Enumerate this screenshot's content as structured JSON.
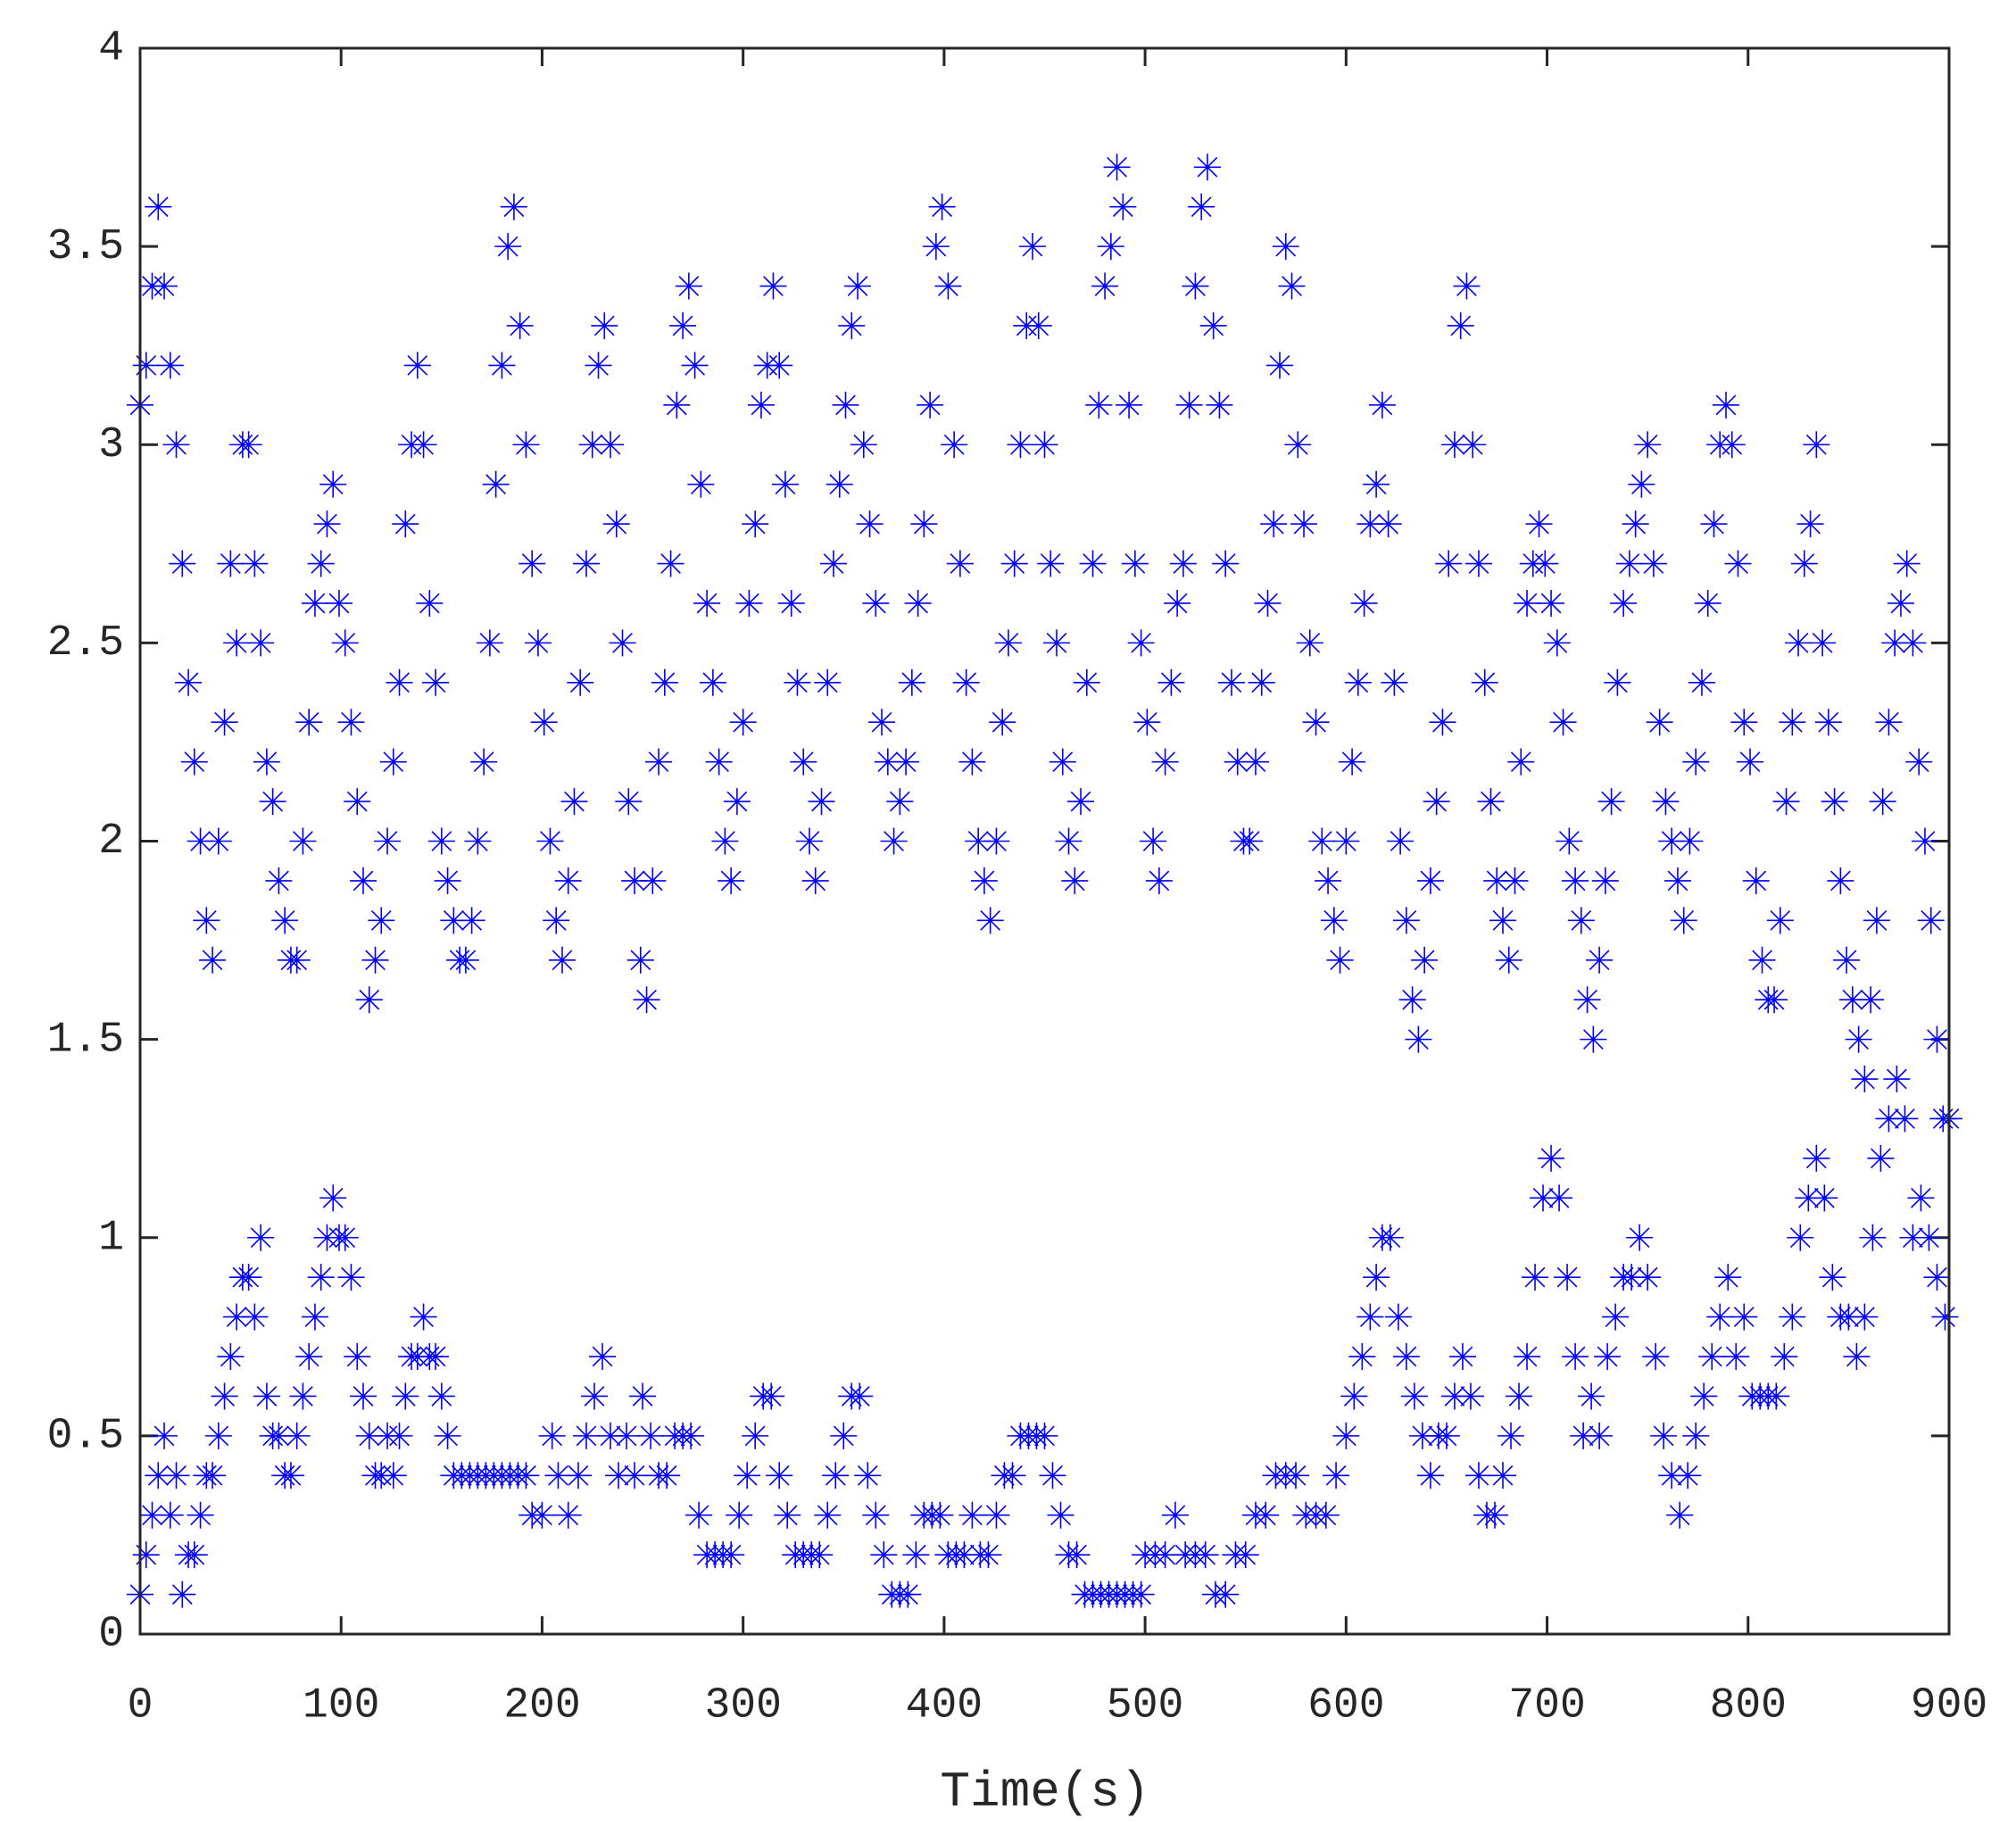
{
  "chart_data": {
    "type": "scatter",
    "x_label": "Time(s)",
    "color": "#0000ff",
    "marker": "asterisk",
    "xlim": [
      0,
      900
    ],
    "ylim": [
      0,
      4
    ],
    "xticks": [
      0,
      100,
      200,
      300,
      400,
      500,
      600,
      700,
      800,
      900
    ],
    "yticks": [
      0,
      0.5,
      1,
      1.5,
      2,
      2.5,
      3,
      3.5,
      4
    ],
    "x": [
      0,
      3,
      6,
      9,
      12,
      15,
      18,
      21,
      24,
      27,
      30,
      33,
      36,
      39,
      42,
      45,
      48,
      51,
      54,
      57,
      60,
      63,
      66,
      69,
      72,
      75,
      78,
      81,
      84,
      87,
      90,
      93,
      96,
      99,
      102,
      105,
      108,
      111,
      114,
      117,
      120,
      123,
      126,
      129,
      132,
      135,
      138,
      141,
      144,
      147,
      150,
      153,
      156,
      159,
      162,
      165,
      168,
      171,
      174,
      177,
      180,
      183,
      186,
      189,
      192,
      195,
      198,
      201,
      204,
      207,
      210,
      213,
      216,
      219,
      222,
      225,
      228,
      231,
      234,
      237,
      240,
      243,
      246,
      249,
      252,
      255,
      258,
      261,
      264,
      267,
      270,
      273,
      276,
      279,
      282,
      285,
      288,
      291,
      294,
      297,
      300,
      303,
      306,
      309,
      312,
      315,
      318,
      321,
      324,
      327,
      330,
      333,
      336,
      339,
      342,
      345,
      348,
      351,
      354,
      357,
      360,
      363,
      366,
      369,
      372,
      375,
      378,
      381,
      384,
      387,
      390,
      393,
      396,
      399,
      402,
      405,
      408,
      411,
      414,
      417,
      420,
      423,
      426,
      429,
      432,
      435,
      438,
      441,
      444,
      447,
      450,
      453,
      456,
      459,
      462,
      465,
      468,
      471,
      474,
      477,
      480,
      483,
      486,
      489,
      492,
      495,
      498,
      501,
      504,
      507,
      510,
      513,
      516,
      519,
      522,
      525,
      528,
      531,
      534,
      537,
      540,
      543,
      546,
      549,
      552,
      555,
      558,
      561,
      564,
      567,
      570,
      573,
      576,
      579,
      582,
      585,
      588,
      591,
      594,
      597,
      600,
      603,
      606,
      609,
      612,
      615,
      618,
      621,
      624,
      627,
      630,
      633,
      636,
      639,
      642,
      645,
      648,
      651,
      654,
      657,
      660,
      663,
      666,
      669,
      672,
      675,
      678,
      681,
      684,
      687,
      690,
      693,
      696,
      699,
      702,
      705,
      708,
      711,
      714,
      717,
      720,
      723,
      726,
      729,
      732,
      735,
      738,
      741,
      744,
      747,
      750,
      753,
      756,
      759,
      762,
      765,
      768,
      771,
      774,
      777,
      780,
      783,
      786,
      789,
      792,
      795,
      798,
      801,
      804,
      807,
      810,
      813,
      816,
      819,
      822,
      825,
      828,
      831,
      834,
      837,
      840,
      843,
      846,
      849,
      852,
      855,
      858,
      861,
      864,
      867,
      870,
      873,
      876,
      879,
      882,
      885,
      888,
      891,
      894,
      897,
      900,
      0,
      3,
      6,
      9,
      12,
      15,
      18,
      21,
      24,
      27,
      30,
      33,
      36,
      39,
      42,
      45,
      48,
      51,
      54,
      57,
      60,
      63,
      66,
      69,
      72,
      75,
      78,
      81,
      84,
      87,
      90,
      93,
      96,
      99,
      102,
      105,
      108,
      111,
      114,
      117,
      120,
      123,
      126,
      129,
      132,
      135,
      138,
      141,
      144,
      147,
      150,
      153,
      156,
      160,
      164,
      168,
      172,
      176,
      180,
      184,
      188,
      192,
      195,
      200,
      205,
      208,
      213,
      218,
      222,
      226,
      230,
      234,
      238,
      242,
      246,
      250,
      254,
      258,
      262,
      266,
      270,
      274,
      278,
      282,
      286,
      290,
      294,
      298,
      302,
      306,
      310,
      314,
      318,
      322,
      326,
      330,
      334,
      338,
      342,
      346,
      350,
      354,
      358,
      362,
      366,
      370,
      374,
      378,
      382,
      386,
      390,
      394,
      398,
      402,
      406,
      410,
      414,
      418,
      422,
      426,
      430,
      434,
      438,
      442,
      446,
      450,
      454,
      458,
      462,
      466,
      470,
      474,
      478,
      482,
      486,
      490,
      494,
      498,
      500,
      505,
      510,
      515,
      520,
      525,
      530,
      535,
      540,
      545,
      550,
      555,
      560,
      565,
      570,
      575,
      580,
      585,
      590,
      595,
      600,
      604,
      608,
      612,
      615,
      618,
      622,
      626,
      630,
      634,
      638,
      642,
      646,
      650,
      654,
      658,
      662,
      666,
      670,
      674,
      678,
      682,
      686,
      690,
      694,
      698,
      702,
      706,
      710,
      714,
      718,
      722,
      726,
      730,
      734,
      738,
      742,
      746,
      750,
      754,
      758,
      762,
      766,
      770,
      774,
      778,
      782,
      786,
      790,
      794,
      798,
      802,
      806,
      810,
      814,
      818,
      822,
      826,
      830,
      834,
      838,
      842,
      846,
      850,
      854,
      858,
      862,
      866,
      870,
      874,
      878,
      882,
      886,
      890,
      894,
      898
    ],
    "values": [
      3.1,
      3.2,
      3.4,
      3.6,
      3.4,
      3.2,
      3.0,
      2.7,
      2.4,
      2.2,
      2.0,
      1.8,
      1.7,
      2.0,
      2.3,
      2.7,
      2.5,
      3.0,
      3.0,
      2.7,
      2.5,
      2.2,
      2.1,
      1.9,
      1.8,
      1.7,
      1.7,
      2.0,
      2.3,
      2.6,
      2.7,
      2.8,
      2.9,
      2.6,
      2.5,
      2.3,
      2.1,
      1.9,
      1.6,
      1.7,
      1.8,
      2.0,
      2.2,
      2.4,
      2.8,
      3.0,
      3.2,
      3.0,
      2.6,
      2.4,
      2.0,
      1.9,
      1.8,
      1.7,
      1.7,
      1.8,
      2.0,
      2.2,
      2.5,
      2.9,
      3.2,
      3.5,
      3.6,
      3.3,
      3.0,
      2.7,
      2.5,
      2.3,
      2.0,
      1.8,
      1.7,
      1.9,
      2.1,
      2.4,
      2.7,
      3.0,
      3.2,
      3.3,
      3.0,
      2.8,
      2.5,
      2.1,
      1.9,
      1.7,
      1.6,
      1.9,
      2.2,
      2.4,
      2.7,
      3.1,
      3.3,
      3.4,
      3.2,
      2.9,
      2.6,
      2.4,
      2.2,
      2.0,
      1.9,
      2.1,
      2.3,
      2.6,
      2.8,
      3.1,
      3.2,
      3.4,
      3.2,
      2.9,
      2.6,
      2.4,
      2.2,
      2.0,
      1.9,
      2.1,
      2.4,
      2.7,
      2.9,
      3.1,
      3.3,
      3.4,
      3.0,
      2.8,
      2.6,
      2.3,
      2.2,
      2.0,
      2.1,
      2.2,
      2.4,
      2.6,
      2.8,
      3.1,
      3.5,
      3.6,
      3.4,
      3.0,
      2.7,
      2.4,
      2.2,
      2.0,
      1.9,
      1.8,
      2.0,
      2.3,
      2.5,
      2.7,
      3.0,
      3.3,
      3.5,
      3.3,
      3.0,
      2.7,
      2.5,
      2.2,
      2.0,
      1.9,
      2.1,
      2.4,
      2.7,
      3.1,
      3.4,
      3.5,
      3.7,
      3.6,
      3.1,
      2.7,
      2.5,
      2.3,
      2.0,
      1.9,
      2.2,
      2.4,
      2.6,
      2.7,
      3.1,
      3.4,
      3.6,
      3.7,
      3.3,
      3.1,
      2.7,
      2.4,
      2.2,
      2.0,
      2.0,
      2.2,
      2.4,
      2.6,
      2.8,
      3.2,
      3.5,
      3.4,
      3.0,
      2.8,
      2.5,
      2.3,
      2.0,
      1.9,
      1.8,
      1.7,
      2.0,
      2.2,
      2.4,
      2.6,
      2.8,
      2.9,
      3.1,
      2.8,
      2.4,
      2.0,
      1.8,
      1.6,
      1.5,
      1.7,
      1.9,
      2.1,
      2.3,
      2.7,
      3.0,
      3.3,
      3.4,
      3.0,
      2.7,
      2.4,
      2.1,
      1.9,
      1.8,
      1.7,
      1.9,
      2.2,
      2.6,
      2.7,
      2.8,
      2.7,
      2.6,
      2.5,
      2.3,
      2.0,
      1.9,
      1.8,
      1.6,
      1.5,
      1.7,
      1.9,
      2.1,
      2.4,
      2.6,
      2.7,
      2.8,
      2.9,
      3.0,
      2.7,
      2.3,
      2.1,
      2.0,
      1.9,
      1.8,
      2.0,
      2.2,
      2.4,
      2.6,
      2.8,
      3.0,
      3.1,
      3.0,
      2.7,
      2.3,
      2.2,
      1.9,
      1.7,
      1.6,
      1.6,
      1.8,
      2.1,
      2.3,
      2.5,
      2.7,
      2.8,
      3.0,
      2.5,
      2.3,
      2.1,
      1.9,
      1.7,
      1.6,
      1.5,
      1.4,
      1.6,
      1.8,
      2.1,
      2.3,
      2.5,
      2.6,
      2.7,
      2.5,
      2.2,
      2.0,
      1.8,
      1.5,
      1.3,
      1.3,
      0.1,
      0.2,
      0.3,
      0.4,
      0.5,
      0.3,
      0.4,
      0.1,
      0.2,
      0.2,
      0.3,
      0.4,
      0.4,
      0.5,
      0.6,
      0.7,
      0.8,
      0.9,
      0.9,
      0.8,
      1.0,
      0.6,
      0.5,
      0.5,
      0.4,
      0.4,
      0.5,
      0.6,
      0.7,
      0.8,
      0.9,
      1.0,
      1.1,
      1.0,
      1.0,
      0.9,
      0.7,
      0.6,
      0.5,
      0.4,
      0.4,
      0.5,
      0.4,
      0.5,
      0.6,
      0.7,
      0.7,
      0.8,
      0.7,
      0.7,
      0.6,
      0.5,
      0.4,
      0.4,
      0.4,
      0.4,
      0.4,
      0.4,
      0.4,
      0.4,
      0.4,
      0.4,
      0.3,
      0.3,
      0.5,
      0.4,
      0.3,
      0.4,
      0.5,
      0.6,
      0.7,
      0.5,
      0.4,
      0.5,
      0.4,
      0.6,
      0.5,
      0.4,
      0.4,
      0.5,
      0.5,
      0.5,
      0.3,
      0.2,
      0.2,
      0.2,
      0.2,
      0.3,
      0.4,
      0.5,
      0.6,
      0.6,
      0.4,
      0.3,
      0.2,
      0.2,
      0.2,
      0.2,
      0.3,
      0.4,
      0.5,
      0.6,
      0.6,
      0.4,
      0.3,
      0.2,
      0.1,
      0.1,
      0.1,
      0.2,
      0.3,
      0.3,
      0.3,
      0.2,
      0.2,
      0.2,
      0.3,
      0.2,
      0.2,
      0.3,
      0.4,
      0.4,
      0.5,
      0.5,
      0.5,
      0.5,
      0.4,
      0.3,
      0.2,
      0.2,
      0.1,
      0.1,
      0.1,
      0.1,
      0.1,
      0.1,
      0.1,
      0.1,
      0.2,
      0.2,
      0.2,
      0.3,
      0.2,
      0.2,
      0.2,
      0.1,
      0.1,
      0.2,
      0.2,
      0.3,
      0.3,
      0.4,
      0.4,
      0.4,
      0.3,
      0.3,
      0.3,
      0.4,
      0.5,
      0.6,
      0.7,
      0.8,
      0.9,
      1.0,
      1.0,
      0.8,
      0.7,
      0.6,
      0.5,
      0.4,
      0.5,
      0.5,
      0.6,
      0.7,
      0.6,
      0.4,
      0.3,
      0.3,
      0.4,
      0.5,
      0.6,
      0.7,
      0.9,
      1.1,
      1.2,
      1.1,
      0.9,
      0.7,
      0.5,
      0.6,
      0.5,
      0.7,
      0.8,
      0.9,
      0.9,
      1.0,
      0.9,
      0.7,
      0.5,
      0.4,
      0.3,
      0.4,
      0.5,
      0.6,
      0.7,
      0.8,
      0.9,
      0.7,
      0.8,
      0.6,
      0.6,
      0.6,
      0.6,
      0.7,
      0.8,
      1.0,
      1.1,
      1.2,
      1.1,
      0.9,
      0.8,
      0.8,
      0.7,
      0.8,
      1.0,
      1.2,
      1.3,
      1.4,
      1.3,
      1.0,
      1.1,
      1.0,
      0.9,
      0.8
    ]
  }
}
